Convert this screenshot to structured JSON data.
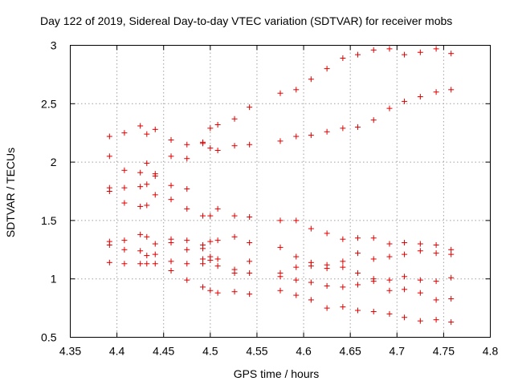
{
  "chart_data": {
    "type": "scatter",
    "title": "Day 122 of 2019, Sidereal Day-to-day VTEC variation (SDTVAR) for receiver mobs",
    "xlabel": "GPS time / hours",
    "ylabel": "SDTVAR / TECUs",
    "xlim": [
      4.35,
      4.8
    ],
    "ylim": [
      0.5,
      3.0
    ],
    "xticks": [
      "4.35",
      "4.4",
      "4.45",
      "4.5",
      "4.55",
      "4.6",
      "4.65",
      "4.7",
      "4.75",
      "4.8"
    ],
    "yticks": [
      "0.5",
      "1",
      "1.5",
      "2",
      "2.5",
      "3"
    ],
    "grid": true,
    "marker": "+",
    "color": "#dd0000",
    "series": [
      {
        "name": "SDTVAR",
        "points": [
          [
            4.392,
            2.22
          ],
          [
            4.392,
            2.05
          ],
          [
            4.392,
            1.78
          ],
          [
            4.392,
            1.75
          ],
          [
            4.392,
            1.32
          ],
          [
            4.392,
            1.29
          ],
          [
            4.392,
            1.14
          ],
          [
            4.408,
            2.25
          ],
          [
            4.408,
            1.93
          ],
          [
            4.408,
            1.78
          ],
          [
            4.408,
            1.65
          ],
          [
            4.408,
            1.33
          ],
          [
            4.408,
            1.25
          ],
          [
            4.408,
            1.13
          ],
          [
            4.425,
            2.31
          ],
          [
            4.425,
            1.91
          ],
          [
            4.425,
            1.79
          ],
          [
            4.425,
            1.62
          ],
          [
            4.425,
            1.38
          ],
          [
            4.425,
            1.24
          ],
          [
            4.425,
            1.13
          ],
          [
            4.432,
            2.24
          ],
          [
            4.432,
            1.99
          ],
          [
            4.432,
            1.81
          ],
          [
            4.432,
            1.63
          ],
          [
            4.432,
            1.36
          ],
          [
            4.432,
            1.2
          ],
          [
            4.432,
            1.13
          ],
          [
            4.441,
            2.28
          ],
          [
            4.441,
            1.9
          ],
          [
            4.441,
            1.88
          ],
          [
            4.441,
            1.72
          ],
          [
            4.441,
            1.3
          ],
          [
            4.441,
            1.21
          ],
          [
            4.441,
            1.13
          ],
          [
            4.458,
            2.19
          ],
          [
            4.458,
            2.05
          ],
          [
            4.458,
            1.8
          ],
          [
            4.458,
            1.68
          ],
          [
            4.458,
            1.34
          ],
          [
            4.458,
            1.31
          ],
          [
            4.458,
            1.15
          ],
          [
            4.458,
            1.07
          ],
          [
            4.475,
            2.15
          ],
          [
            4.475,
            2.03
          ],
          [
            4.475,
            1.77
          ],
          [
            4.475,
            1.6
          ],
          [
            4.475,
            1.33
          ],
          [
            4.475,
            1.25
          ],
          [
            4.475,
            1.13
          ],
          [
            4.475,
            0.99
          ],
          [
            4.492,
            2.17
          ],
          [
            4.492,
            2.16
          ],
          [
            4.492,
            1.54
          ],
          [
            4.492,
            1.29
          ],
          [
            4.492,
            1.26
          ],
          [
            4.492,
            1.17
          ],
          [
            4.492,
            1.13
          ],
          [
            4.492,
            0.93
          ],
          [
            4.5,
            2.29
          ],
          [
            4.5,
            2.12
          ],
          [
            4.5,
            1.54
          ],
          [
            4.5,
            1.32
          ],
          [
            4.5,
            1.19
          ],
          [
            4.5,
            1.16
          ],
          [
            4.5,
            0.9
          ],
          [
            4.508,
            2.32
          ],
          [
            4.508,
            2.1
          ],
          [
            4.508,
            1.6
          ],
          [
            4.508,
            1.33
          ],
          [
            4.508,
            1.17
          ],
          [
            4.508,
            1.11
          ],
          [
            4.508,
            0.88
          ],
          [
            4.526,
            2.37
          ],
          [
            4.526,
            2.14
          ],
          [
            4.526,
            1.54
          ],
          [
            4.526,
            1.36
          ],
          [
            4.526,
            1.08
          ],
          [
            4.526,
            1.05
          ],
          [
            4.526,
            0.89
          ],
          [
            4.542,
            2.47
          ],
          [
            4.542,
            2.15
          ],
          [
            4.542,
            1.53
          ],
          [
            4.542,
            1.31
          ],
          [
            4.542,
            1.15
          ],
          [
            4.542,
            1.05
          ],
          [
            4.542,
            0.87
          ],
          [
            4.575,
            2.59
          ],
          [
            4.575,
            2.18
          ],
          [
            4.575,
            1.5
          ],
          [
            4.575,
            1.27
          ],
          [
            4.575,
            1.05
          ],
          [
            4.575,
            1.02
          ],
          [
            4.575,
            0.9
          ],
          [
            4.592,
            2.62
          ],
          [
            4.592,
            2.22
          ],
          [
            4.592,
            1.5
          ],
          [
            4.592,
            1.19
          ],
          [
            4.592,
            1.1
          ],
          [
            4.592,
            0.99
          ],
          [
            4.592,
            0.86
          ],
          [
            4.608,
            2.71
          ],
          [
            4.608,
            2.23
          ],
          [
            4.608,
            1.43
          ],
          [
            4.608,
            1.14
          ],
          [
            4.608,
            1.11
          ],
          [
            4.608,
            0.97
          ],
          [
            4.608,
            0.82
          ],
          [
            4.625,
            2.8
          ],
          [
            4.625,
            2.26
          ],
          [
            4.625,
            1.39
          ],
          [
            4.625,
            1.12
          ],
          [
            4.625,
            1.09
          ],
          [
            4.625,
            0.94
          ],
          [
            4.625,
            0.75
          ],
          [
            4.642,
            2.89
          ],
          [
            4.642,
            2.29
          ],
          [
            4.642,
            1.34
          ],
          [
            4.642,
            1.15
          ],
          [
            4.642,
            1.1
          ],
          [
            4.642,
            0.93
          ],
          [
            4.642,
            0.76
          ],
          [
            4.658,
            2.92
          ],
          [
            4.658,
            2.3
          ],
          [
            4.658,
            1.35
          ],
          [
            4.658,
            1.22
          ],
          [
            4.658,
            1.05
          ],
          [
            4.658,
            0.95
          ],
          [
            4.658,
            0.73
          ],
          [
            4.675,
            2.96
          ],
          [
            4.675,
            2.36
          ],
          [
            4.675,
            1.35
          ],
          [
            4.675,
            1.17
          ],
          [
            4.675,
            1.0
          ],
          [
            4.675,
            0.98
          ],
          [
            4.675,
            0.72
          ],
          [
            4.692,
            2.97
          ],
          [
            4.692,
            2.46
          ],
          [
            4.692,
            1.3
          ],
          [
            4.692,
            1.19
          ],
          [
            4.692,
            0.99
          ],
          [
            4.692,
            0.9
          ],
          [
            4.692,
            0.7
          ],
          [
            4.708,
            2.92
          ],
          [
            4.708,
            2.52
          ],
          [
            4.708,
            1.31
          ],
          [
            4.708,
            1.21
          ],
          [
            4.708,
            1.02
          ],
          [
            4.708,
            0.91
          ],
          [
            4.708,
            0.67
          ],
          [
            4.725,
            2.94
          ],
          [
            4.725,
            2.56
          ],
          [
            4.725,
            1.3
          ],
          [
            4.725,
            1.24
          ],
          [
            4.725,
            0.99
          ],
          [
            4.725,
            0.88
          ],
          [
            4.725,
            0.64
          ],
          [
            4.742,
            2.97
          ],
          [
            4.742,
            2.6
          ],
          [
            4.742,
            1.29
          ],
          [
            4.742,
            1.22
          ],
          [
            4.742,
            0.98
          ],
          [
            4.742,
            0.82
          ],
          [
            4.742,
            0.65
          ],
          [
            4.758,
            2.93
          ],
          [
            4.758,
            2.62
          ],
          [
            4.758,
            1.25
          ],
          [
            4.758,
            1.21
          ],
          [
            4.758,
            1.01
          ],
          [
            4.758,
            0.83
          ],
          [
            4.758,
            0.63
          ]
        ]
      }
    ]
  }
}
